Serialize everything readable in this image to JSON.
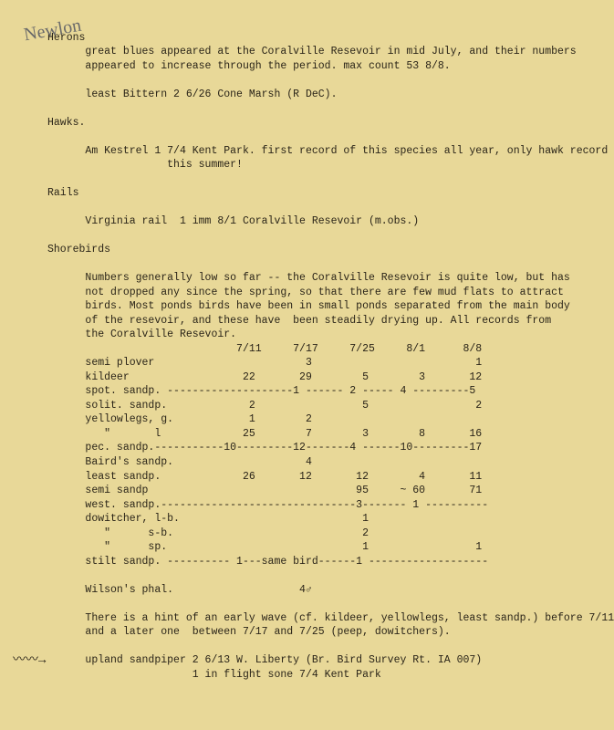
{
  "handwriting": "Newlon",
  "herons": {
    "heading": "Herons",
    "line1": "great blues appeared at the Coralville Resevoir in mid July, and their numbers",
    "line2": "appeared to increase through the period. max count 53 8/8.",
    "line3": "least Bittern 2 6/26 Cone Marsh (R DeC)."
  },
  "hawks": {
    "heading": "Hawks.",
    "line1": "Am Kestrel 1 7/4 Kent Park. first record of this species all year, only hawk record",
    "line2": "this summer!"
  },
  "rails": {
    "heading": "Rails",
    "line1": "Virginia rail  1 imm 8/1 Coralville Resevoir (m.obs.)"
  },
  "shorebirds": {
    "heading": "Shorebirds",
    "p1l1": "Numbers generally low so far -- the Coralville Resevoir is quite low, but has",
    "p1l2": "not dropped any since the spring, so that there are few mud flats to attract",
    "p1l3": "birds. Most ponds birds have been in small ponds separated from the main body",
    "p1l4": "of the resevoir, and these have  been steadily drying up. All records from",
    "p1l5": "the Coralville Resevoir.",
    "tbl": {
      "hdr": "                        7/11     7/17     7/25     8/1      8/8",
      "r1": "semi plover                        3                          1",
      "r2": "kildeer                  22       29        5        3       12",
      "r3": "spot. sandp. --------------------1 ------ 2 ----- 4 ---------5",
      "r4": "solit. sandp.             2                 5                 2",
      "r5": "yellowlegs, g.            1        2",
      "r6": "   \"       l             25        7        3        8       16",
      "r7": "pec. sandp.-----------10---------12-------4 ------10---------17",
      "r8": "Baird's sandp.                     4",
      "r9": "least sandp.             26       12       12        4       11",
      "r10": "semi sandp                                 95     ~ 60       71",
      "r11": "west. sandp.-------------------------------3------- 1 ----------",
      "r12": "dowitcher, l-b.                             1",
      "r13": "   \"      s-b.                              2",
      "r14": "   \"      sp.                               1                 1",
      "r15": "stilt sandp. ---------- 1---same bird------1 -------------------",
      "r16": "Wilson's phal.                    4♂"
    },
    "p2l1": "There is a hint of an early wave (cf. kildeer, yellowlegs, least sandp.) before 7/11",
    "p2l2": "and a later one  between 7/17 and 7/25 (peep, dowitchers).",
    "up1": "upland sandpiper 2 6/13 W. Liberty (Br. Bird Survey Rt. IA 007)",
    "up2": "                 1 in flight sone 7/4 Kent Park"
  },
  "arrow": "〰〰→"
}
